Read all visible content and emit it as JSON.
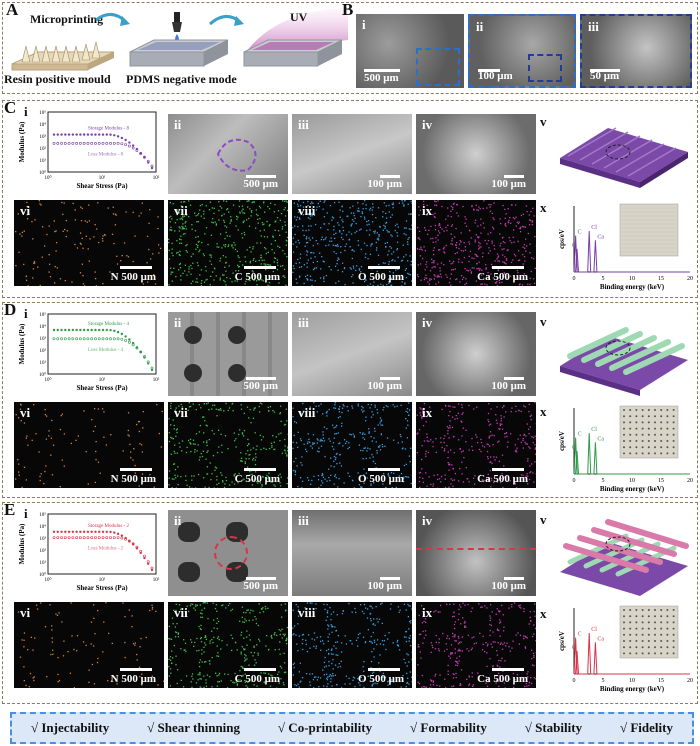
{
  "panelA": {
    "letter": "A",
    "step1": "Microprinting",
    "step3": "UV",
    "mould": "Resin positive mould",
    "negative": "PDMS negative mode"
  },
  "panelB": {
    "letter": "B",
    "images": [
      {
        "label": "i",
        "scale": "500 μm"
      },
      {
        "label": "ii",
        "scale": "100 μm"
      },
      {
        "label": "iii",
        "scale": "50 μm"
      }
    ]
  },
  "rows": [
    {
      "letter": "C",
      "color": "#7b3fa8",
      "rheo": {
        "label": "i",
        "ylabel": "Modulus (Pa)",
        "xlabel": "Shear Stress (Pa)",
        "storage": "Storage Modulus - 8",
        "loss": "Loss Modulus - 8",
        "xticks": [
          "10⁰",
          "10¹",
          "10²"
        ],
        "yticks": [
          "10⁵",
          "10⁴",
          "10³",
          "10²",
          "10¹",
          "10⁰"
        ]
      },
      "sem": [
        {
          "label": "ii",
          "scale": "500 μm"
        },
        {
          "label": "iii",
          "scale": "100 μm"
        },
        {
          "label": "iv",
          "scale": "100 μm"
        }
      ],
      "model_label": "v",
      "eds": [
        {
          "label": "vi",
          "el": "N",
          "scale": "500 μm"
        },
        {
          "label": "vii",
          "el": "C",
          "scale": "500 μm"
        },
        {
          "label": "viii",
          "el": "O",
          "scale": "500 μm"
        },
        {
          "label": "ix",
          "el": "Ca",
          "scale": "500 μm"
        }
      ],
      "spectrum": {
        "label": "x",
        "ylabel": "cps/eV",
        "xlabel": "Binding energy (keV)",
        "peaks": [
          "C",
          "O",
          "Cl",
          "Ca"
        ],
        "xticks": [
          "0",
          "5",
          "10",
          "15",
          "20"
        ]
      }
    },
    {
      "letter": "D",
      "color": "#2f9a4a",
      "rheo": {
        "label": "i",
        "ylabel": "Modulus (Pa)",
        "xlabel": "Shear Stress (Pa)",
        "storage": "Storage Modulus - 4",
        "loss": "Loss Modulus - 4",
        "xticks": [
          "10⁰",
          "10¹",
          "10²"
        ],
        "yticks": [
          "10⁵",
          "10⁴",
          "10³",
          "10²",
          "10¹",
          "10⁰"
        ]
      },
      "sem": [
        {
          "label": "ii",
          "scale": "500 μm"
        },
        {
          "label": "iii",
          "scale": "100 μm"
        },
        {
          "label": "iv",
          "scale": "100 μm"
        }
      ],
      "model_label": "v",
      "eds": [
        {
          "label": "vi",
          "el": "N",
          "scale": "500 μm"
        },
        {
          "label": "vii",
          "el": "C",
          "scale": "500 μm"
        },
        {
          "label": "viii",
          "el": "O",
          "scale": "500 μm"
        },
        {
          "label": "ix",
          "el": "Ca",
          "scale": "500 μm"
        }
      ],
      "spectrum": {
        "label": "x",
        "ylabel": "cps/eV",
        "xlabel": "Binding energy (keV)",
        "peaks": [
          "C",
          "O",
          "Cl",
          "Ca"
        ],
        "xticks": [
          "0",
          "5",
          "10",
          "15",
          "20"
        ]
      }
    },
    {
      "letter": "E",
      "color": "#d8344a",
      "rheo": {
        "label": "i",
        "ylabel": "Modulus (Pa)",
        "xlabel": "Shear Stress (Pa)",
        "storage": "Storage Modulus - 2",
        "loss": "Loss Modulus - 2",
        "xticks": [
          "10⁰",
          "10¹",
          "10²"
        ],
        "yticks": [
          "10⁵",
          "10⁴",
          "10³",
          "10²",
          "10¹",
          "10⁰"
        ]
      },
      "sem": [
        {
          "label": "ii",
          "scale": "500 μm"
        },
        {
          "label": "iii",
          "scale": "100 μm"
        },
        {
          "label": "iv",
          "scale": "100 μm"
        }
      ],
      "model_label": "v",
      "eds": [
        {
          "label": "vi",
          "el": "N",
          "scale": "500 μm"
        },
        {
          "label": "vii",
          "el": "C",
          "scale": "500 μm"
        },
        {
          "label": "viii",
          "el": "O",
          "scale": "500 μm"
        },
        {
          "label": "ix",
          "el": "Ca",
          "scale": "500 μm"
        }
      ],
      "spectrum": {
        "label": "x",
        "ylabel": "cps/eV",
        "xlabel": "Binding energy (keV)",
        "peaks": [
          "C",
          "O",
          "Cl",
          "Ca"
        ],
        "xticks": [
          "0",
          "5",
          "10",
          "15",
          "20"
        ]
      }
    }
  ],
  "eds_colors": {
    "N": "#d9823a",
    "C": "#3fc24a",
    "O": "#3a9ee0",
    "Ca": "#c93ab8"
  },
  "summary": [
    "√  Injectability",
    "√  Shear thinning",
    "√  Co-printability",
    "√  Formability",
    "√  Stability",
    "√  Fidelity"
  ]
}
